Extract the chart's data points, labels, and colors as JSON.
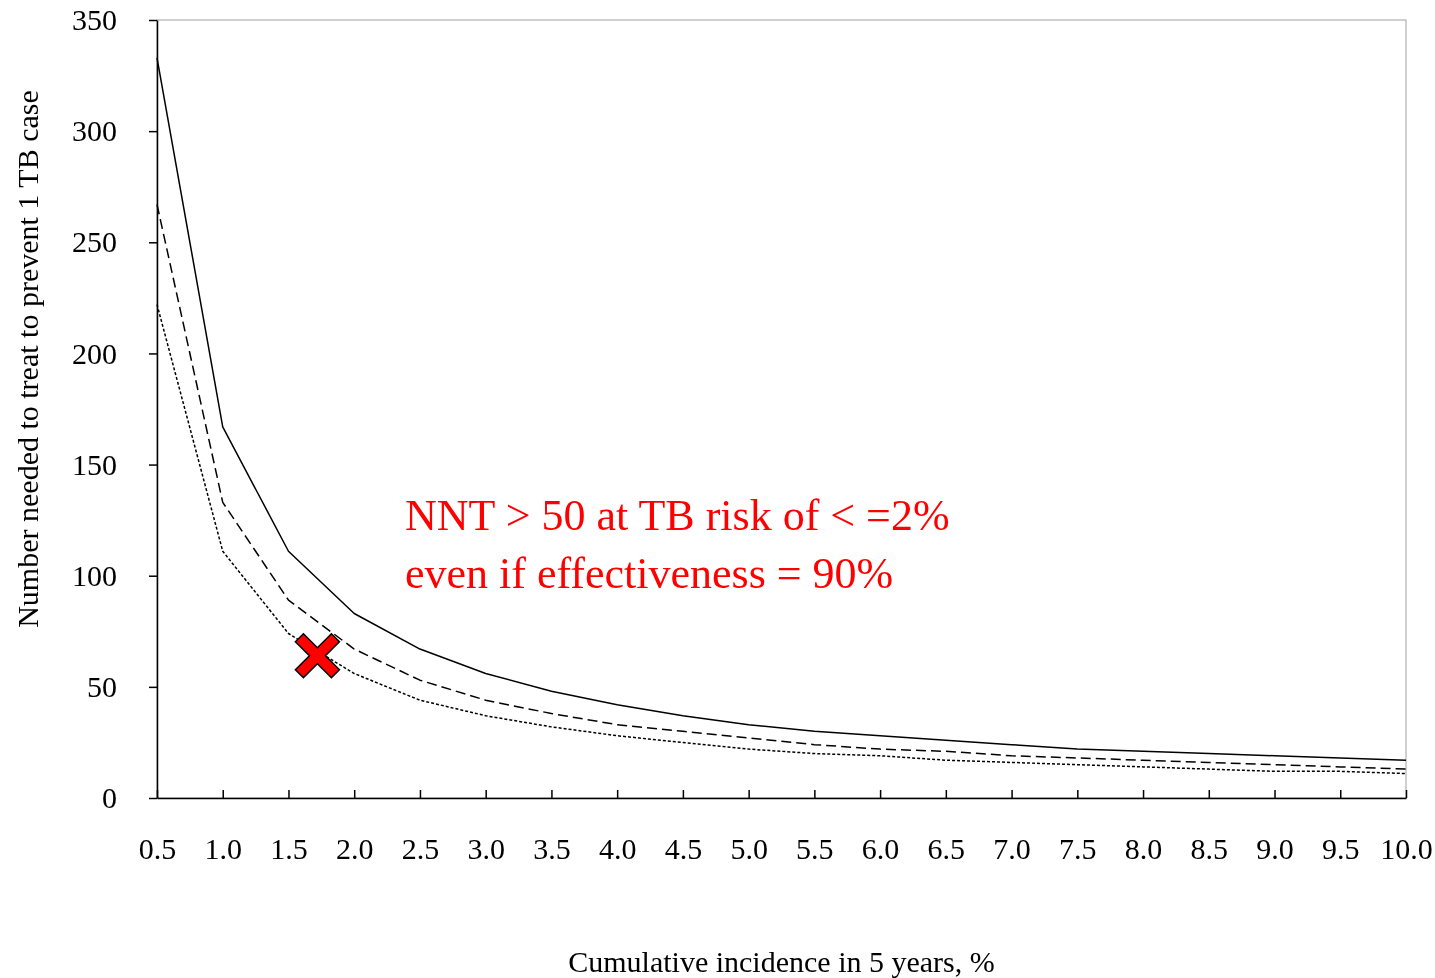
{
  "chart_data": {
    "type": "line",
    "xlabel": "Cumulative incidence in 5 years, %",
    "ylabel": "Number needed to treat to prevent 1 TB case",
    "x": [
      0.5,
      1,
      1.5,
      2,
      2.5,
      3,
      3.5,
      4,
      4.5,
      5,
      5.5,
      6,
      6.5,
      7,
      7.5,
      8,
      8.5,
      9,
      9.5,
      10
    ],
    "xlim": [
      0.5,
      10
    ],
    "xticks": [
      {
        "value": 0.5,
        "label": "0.5"
      },
      {
        "value": 1,
        "label": "1.0"
      },
      {
        "value": 1.5,
        "label": "1.5"
      },
      {
        "value": 2,
        "label": "2.0"
      },
      {
        "value": 2.5,
        "label": "2.5"
      },
      {
        "value": 3,
        "label": "3.0"
      },
      {
        "value": 3.5,
        "label": "3.5"
      },
      {
        "value": 4,
        "label": "4.0"
      },
      {
        "value": 4.5,
        "label": "4.5"
      },
      {
        "value": 5,
        "label": "5.0"
      },
      {
        "value": 5.5,
        "label": "5.5"
      },
      {
        "value": 6,
        "label": "6.0"
      },
      {
        "value": 6.5,
        "label": "6.5"
      },
      {
        "value": 7,
        "label": "7.0"
      },
      {
        "value": 7.5,
        "label": "7.5"
      },
      {
        "value": 8,
        "label": "8.0"
      },
      {
        "value": 8.5,
        "label": "8.5"
      },
      {
        "value": 9,
        "label": "9.0"
      },
      {
        "value": 9.5,
        "label": "9.5"
      },
      {
        "value": 10,
        "label": "10.0"
      }
    ],
    "ylim": [
      0,
      350
    ],
    "yticks": [
      0,
      50,
      100,
      150,
      200,
      250,
      300,
      350
    ],
    "grid": false,
    "series": [
      {
        "color": "#000000",
        "line_style": "solid",
        "values": [
          333,
          167,
          111,
          83,
          67,
          56,
          48,
          42,
          37,
          33,
          30,
          28,
          26,
          24,
          22,
          21,
          20,
          19,
          18,
          17
        ]
      },
      {
        "color": "#000000",
        "line_style": "dashed",
        "values": [
          267,
          133,
          89,
          67,
          53,
          44,
          38,
          33,
          30,
          27,
          24,
          22,
          21,
          19,
          18,
          17,
          16,
          15,
          14,
          13
        ]
      },
      {
        "color": "#000000",
        "line_style": "dotted",
        "values": [
          222,
          111,
          74,
          56,
          44,
          37,
          32,
          28,
          25,
          22,
          20,
          19,
          17,
          16,
          15,
          14,
          13,
          12,
          12,
          11
        ]
      },
      {
        "type": "scatter",
        "marker": "cross",
        "color": "#ff0000",
        "x": [
          1.72
        ],
        "values": [
          64
        ]
      }
    ],
    "annotations": [
      "NNT > 50 at TB risk of < =2%",
      "even if effectiveness = 90%"
    ]
  }
}
